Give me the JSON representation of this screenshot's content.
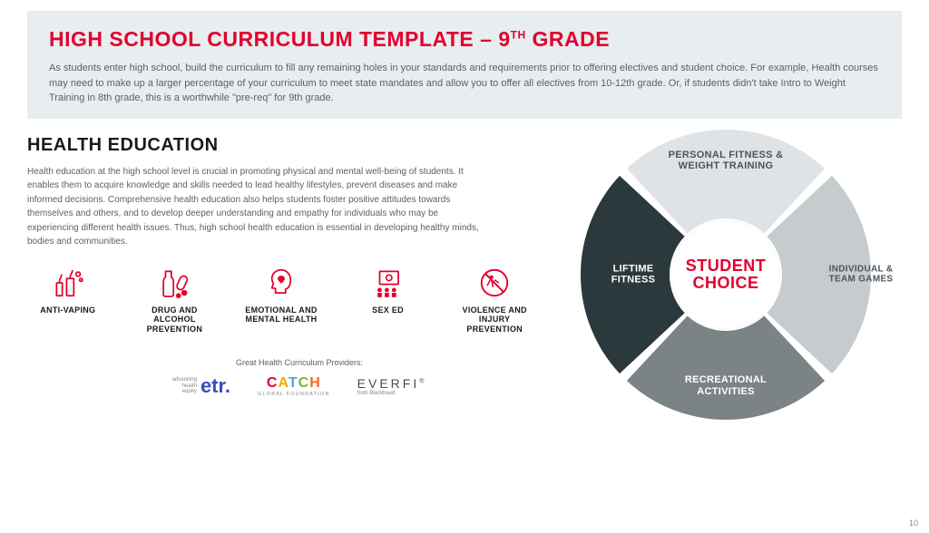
{
  "header": {
    "title_pre": "HIGH SCHOOL CURRICULUM TEMPLATE – 9",
    "title_sup": "TH",
    "title_post": " GRADE",
    "text": "As students enter high school, build the curriculum to fill any remaining holes in your standards and requirements prior to offering electives and student choice. For example, Health courses may need to make up a larger percentage of your curriculum to meet state mandates and allow you to offer all electives from 10-12th grade. Or, if students didn't take Intro to Weight Training in 8th grade, this is a worthwhile \"pre-req\" for 9th grade.",
    "bg_color": "#e8edef",
    "title_color": "#e2002d"
  },
  "health": {
    "title": "HEALTH EDUCATION",
    "body": "Health education at the high school level is crucial in promoting physical and mental well-being of students. It enables them to acquire knowledge and skills needed to lead healthy lifestyles, prevent diseases and make informed decisions. Comprehensive health education also helps students foster positive attitudes towards themselves and others, and to develop deeper understanding and empathy for individuals who may be experiencing different health issues. Thus, high school health education is essential in developing healthy minds, bodies and communities.",
    "icon_color": "#e2002d",
    "topics": [
      {
        "label": "ANTI-VAPING"
      },
      {
        "label": "DRUG AND ALCOHOL PREVENTION"
      },
      {
        "label": "EMOTIONAL AND MENTAL HEALTH"
      },
      {
        "label": "SEX ED"
      },
      {
        "label": "VIOLENCE AND INJURY PREVENTION"
      }
    ]
  },
  "providers": {
    "label": "Great Health Curriculum Providers:",
    "etr_tag1": "advancing",
    "etr_tag2": "health",
    "etr_tag3": "equity",
    "etr_brand": "etr",
    "catch_brand": "CATCH",
    "catch_sub": "GLOBAL FOUNDATION",
    "everfi_brand": "EVERFI",
    "everfi_sub": "from Blackbaud"
  },
  "wheel": {
    "center_line1": "STUDENT",
    "center_line2": "CHOICE",
    "center_color": "#e2002d",
    "segments": [
      {
        "label": "PERSONAL FITNESS & WEIGHT TRAINING",
        "color": "#dfe3e5",
        "text_color": "#4d5459"
      },
      {
        "label": "INDIVIDUAL & TEAM GAMES",
        "color": "#c6ccce",
        "text_color": "#4d5459"
      },
      {
        "label": "RECREATIONAL ACTIVITIES",
        "color": "#7b8387",
        "text_color": "#ffffff"
      },
      {
        "label": "LIFTIME FITNESS",
        "color": "#2b393c",
        "text_color": "#ffffff"
      }
    ],
    "gap_color": "#ffffff",
    "outer_radius": 160,
    "inner_radius": 62
  },
  "page_number": "10"
}
